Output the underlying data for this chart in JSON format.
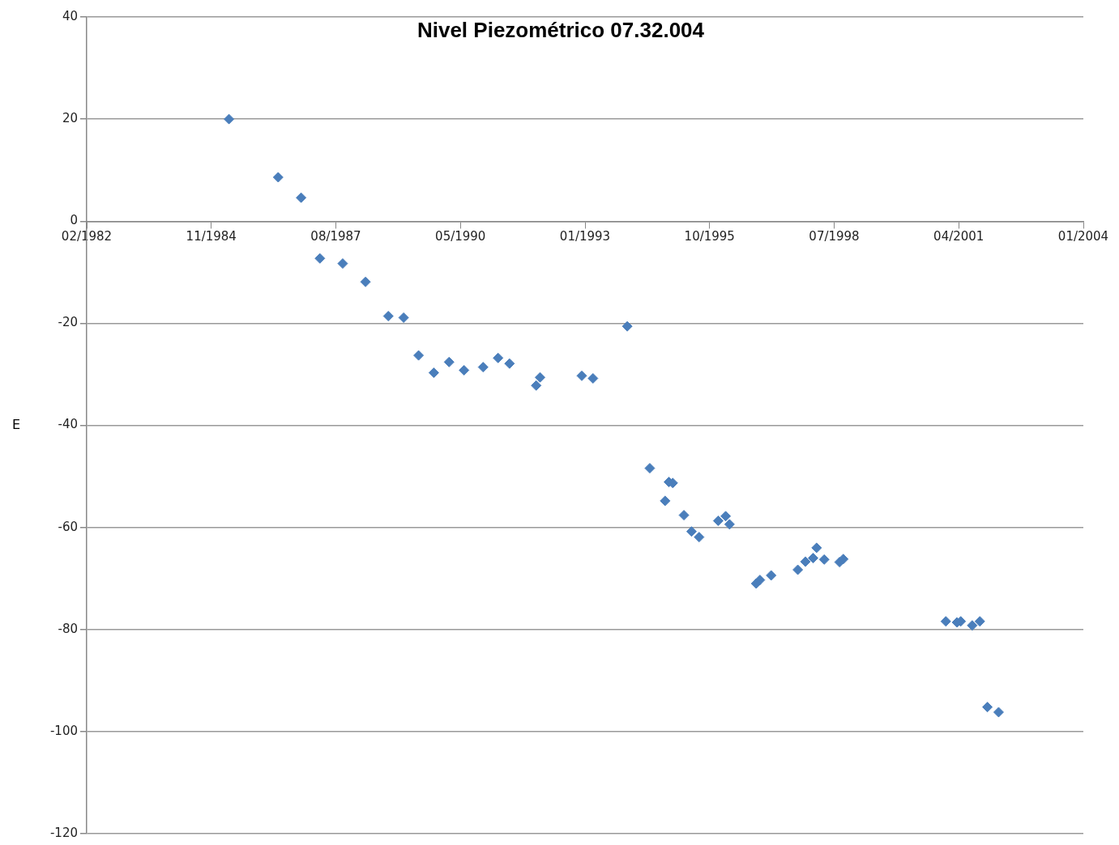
{
  "chart_data": {
    "type": "scatter",
    "title": "Nivel Piezométrico 07.32.004",
    "ylabel": "E",
    "x": [
      "1985-04",
      "1986-05",
      "1986-11",
      "1987-04",
      "1987-10",
      "1988-04",
      "1988-10",
      "1989-02",
      "1989-06",
      "1989-10",
      "1990-02",
      "1990-06",
      "1990-11",
      "1991-03",
      "1991-06",
      "1992-01",
      "1992-02",
      "1993-01",
      "1993-04",
      "1994-01",
      "1994-07",
      "1994-11",
      "1994-12",
      "1995-01",
      "1995-04",
      "1995-06",
      "1995-08",
      "1996-01",
      "1996-03",
      "1996-04",
      "1996-11",
      "1996-12",
      "1997-03",
      "1997-10",
      "1997-12",
      "1998-02",
      "1998-03",
      "1998-05",
      "1998-09",
      "1998-10",
      "2001-01",
      "2001-04",
      "2001-05",
      "2001-08",
      "2001-10",
      "2001-12",
      "2002-03"
    ],
    "series": [
      {
        "color": "#4a7ebb",
        "values": [
          20,
          8.6,
          4.6,
          -7.3,
          -8.3,
          -11.9,
          -18.6,
          -18.9,
          -26.3,
          -29.7,
          -27.6,
          -29.2,
          -28.6,
          -26.8,
          -27.9,
          -32.2,
          -30.6,
          -30.3,
          -30.8,
          -20.6,
          -48.4,
          -54.8,
          -51.1,
          -51.3,
          -57.6,
          -60.8,
          -61.9,
          -58.7,
          -57.8,
          -59.4,
          -71,
          -70.3,
          -69.4,
          -68.3,
          -66.7,
          -66,
          -64,
          -66.3,
          -66.8,
          -66.2,
          -78.4,
          -78.6,
          -78.4,
          -79.2,
          -78.4,
          -95.2,
          -96.2
        ]
      }
    ],
    "xlim": [
      "1982-02-14",
      "2004-01-10"
    ],
    "xticks": [
      {
        "value": "1982-02-14",
        "label": "02/1982"
      },
      {
        "value": "1984-11-10",
        "label": "11/1984"
      },
      {
        "value": "1987-08-07",
        "label": "08/1987"
      },
      {
        "value": "1990-05-03",
        "label": "05/1990"
      },
      {
        "value": "1993-01-27",
        "label": "01/1993"
      },
      {
        "value": "1995-10-24",
        "label": "10/1995"
      },
      {
        "value": "1998-07-20",
        "label": "07/1998"
      },
      {
        "value": "2001-04-15",
        "label": "04/2001"
      },
      {
        "value": "2004-01-10",
        "label": "01/2004"
      }
    ],
    "ylim": [
      -120,
      40
    ],
    "yticks": [
      -120,
      -100,
      -80,
      -60,
      -40,
      -20,
      0,
      20,
      40
    ],
    "grid": "y",
    "legend": false,
    "marker": "diamond"
  }
}
